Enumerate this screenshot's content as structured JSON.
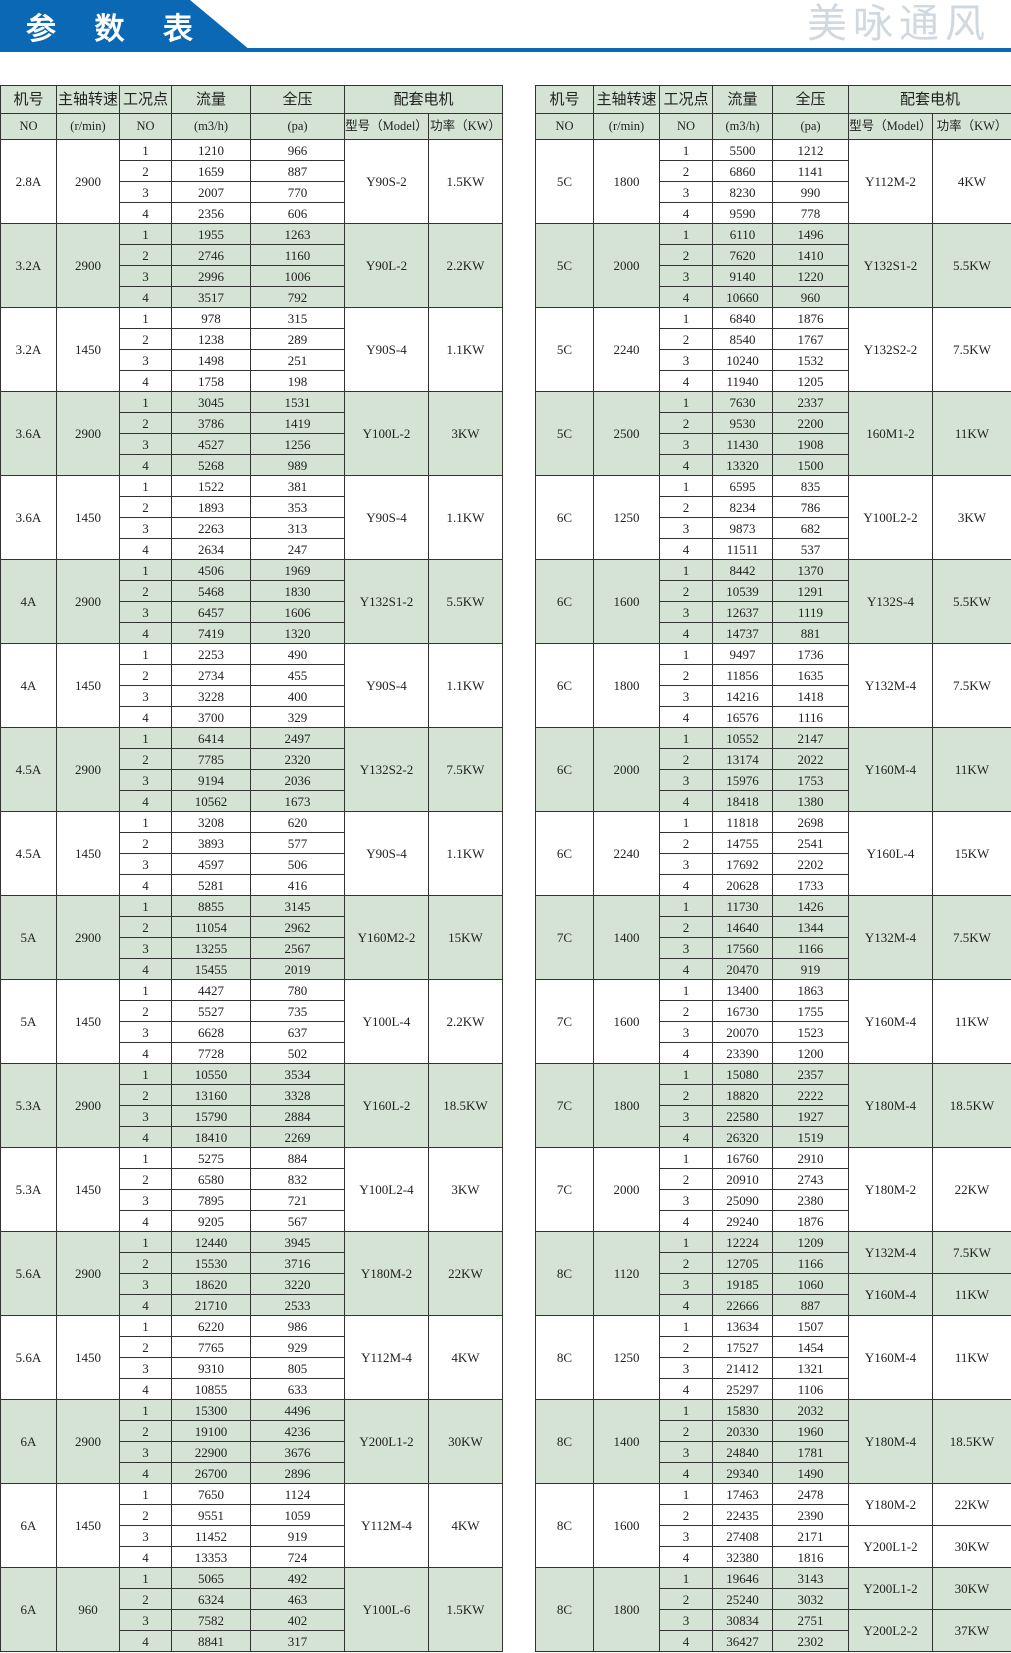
{
  "title": "参 数 表",
  "watermark": "美咏通风",
  "colors": {
    "brand_blue": "#0b68b4",
    "group_fill": "#d5e3d4"
  },
  "headers": {
    "row1": [
      "机号",
      "主轴转速",
      "工况点",
      "流量",
      "全压",
      "配套电机"
    ],
    "row2": [
      "NO",
      "(r/min)",
      "NO",
      "(m3/h)",
      "(pa)",
      "型号（Model）",
      "功率（KW）"
    ]
  },
  "left": [
    {
      "no": "2.8A",
      "rpm": "2900",
      "points": [
        [
          "1",
          "1210",
          "966"
        ],
        [
          "2",
          "1659",
          "887"
        ],
        [
          "3",
          "2007",
          "770"
        ],
        [
          "4",
          "2356",
          "606"
        ]
      ],
      "motors": [
        {
          "model": "Y90S-2",
          "power": "1.5KW"
        }
      ]
    },
    {
      "no": "3.2A",
      "rpm": "2900",
      "points": [
        [
          "1",
          "1955",
          "1263"
        ],
        [
          "2",
          "2746",
          "1160"
        ],
        [
          "3",
          "2996",
          "1006"
        ],
        [
          "4",
          "3517",
          "792"
        ]
      ],
      "motors": [
        {
          "model": "Y90L-2",
          "power": "2.2KW"
        }
      ]
    },
    {
      "no": "3.2A",
      "rpm": "1450",
      "points": [
        [
          "1",
          "978",
          "315"
        ],
        [
          "2",
          "1238",
          "289"
        ],
        [
          "3",
          "1498",
          "251"
        ],
        [
          "4",
          "1758",
          "198"
        ]
      ],
      "motors": [
        {
          "model": "Y90S-4",
          "power": "1.1KW"
        }
      ]
    },
    {
      "no": "3.6A",
      "rpm": "2900",
      "points": [
        [
          "1",
          "3045",
          "1531"
        ],
        [
          "2",
          "3786",
          "1419"
        ],
        [
          "3",
          "4527",
          "1256"
        ],
        [
          "4",
          "5268",
          "989"
        ]
      ],
      "motors": [
        {
          "model": "Y100L-2",
          "power": "3KW"
        }
      ]
    },
    {
      "no": "3.6A",
      "rpm": "1450",
      "points": [
        [
          "1",
          "1522",
          "381"
        ],
        [
          "2",
          "1893",
          "353"
        ],
        [
          "3",
          "2263",
          "313"
        ],
        [
          "4",
          "2634",
          "247"
        ]
      ],
      "motors": [
        {
          "model": "Y90S-4",
          "power": "1.1KW"
        }
      ]
    },
    {
      "no": "4A",
      "rpm": "2900",
      "points": [
        [
          "1",
          "4506",
          "1969"
        ],
        [
          "2",
          "5468",
          "1830"
        ],
        [
          "3",
          "6457",
          "1606"
        ],
        [
          "4",
          "7419",
          "1320"
        ]
      ],
      "motors": [
        {
          "model": "Y132S1-2",
          "power": "5.5KW"
        }
      ]
    },
    {
      "no": "4A",
      "rpm": "1450",
      "points": [
        [
          "1",
          "2253",
          "490"
        ],
        [
          "2",
          "2734",
          "455"
        ],
        [
          "3",
          "3228",
          "400"
        ],
        [
          "4",
          "3700",
          "329"
        ]
      ],
      "motors": [
        {
          "model": "Y90S-4",
          "power": "1.1KW"
        }
      ]
    },
    {
      "no": "4.5A",
      "rpm": "2900",
      "points": [
        [
          "1",
          "6414",
          "2497"
        ],
        [
          "2",
          "7785",
          "2320"
        ],
        [
          "3",
          "9194",
          "2036"
        ],
        [
          "4",
          "10562",
          "1673"
        ]
      ],
      "motors": [
        {
          "model": "Y132S2-2",
          "power": "7.5KW"
        }
      ]
    },
    {
      "no": "4.5A",
      "rpm": "1450",
      "points": [
        [
          "1",
          "3208",
          "620"
        ],
        [
          "2",
          "3893",
          "577"
        ],
        [
          "3",
          "4597",
          "506"
        ],
        [
          "4",
          "5281",
          "416"
        ]
      ],
      "motors": [
        {
          "model": "Y90S-4",
          "power": "1.1KW"
        }
      ]
    },
    {
      "no": "5A",
      "rpm": "2900",
      "points": [
        [
          "1",
          "8855",
          "3145"
        ],
        [
          "2",
          "11054",
          "2962"
        ],
        [
          "3",
          "13255",
          "2567"
        ],
        [
          "4",
          "15455",
          "2019"
        ]
      ],
      "motors": [
        {
          "model": "Y160M2-2",
          "power": "15KW"
        }
      ]
    },
    {
      "no": "5A",
      "rpm": "1450",
      "points": [
        [
          "1",
          "4427",
          "780"
        ],
        [
          "2",
          "5527",
          "735"
        ],
        [
          "3",
          "6628",
          "637"
        ],
        [
          "4",
          "7728",
          "502"
        ]
      ],
      "motors": [
        {
          "model": "Y100L-4",
          "power": "2.2KW"
        }
      ]
    },
    {
      "no": "5.3A",
      "rpm": "2900",
      "points": [
        [
          "1",
          "10550",
          "3534"
        ],
        [
          "2",
          "13160",
          "3328"
        ],
        [
          "3",
          "15790",
          "2884"
        ],
        [
          "4",
          "18410",
          "2269"
        ]
      ],
      "motors": [
        {
          "model": "Y160L-2",
          "power": "18.5KW"
        }
      ]
    },
    {
      "no": "5.3A",
      "rpm": "1450",
      "points": [
        [
          "1",
          "5275",
          "884"
        ],
        [
          "2",
          "6580",
          "832"
        ],
        [
          "3",
          "7895",
          "721"
        ],
        [
          "4",
          "9205",
          "567"
        ]
      ],
      "motors": [
        {
          "model": "Y100L2-4",
          "power": "3KW"
        }
      ]
    },
    {
      "no": "5.6A",
      "rpm": "2900",
      "points": [
        [
          "1",
          "12440",
          "3945"
        ],
        [
          "2",
          "15530",
          "3716"
        ],
        [
          "3",
          "18620",
          "3220"
        ],
        [
          "4",
          "21710",
          "2533"
        ]
      ],
      "motors": [
        {
          "model": "Y180M-2",
          "power": "22KW"
        }
      ]
    },
    {
      "no": "5.6A",
      "rpm": "1450",
      "points": [
        [
          "1",
          "6220",
          "986"
        ],
        [
          "2",
          "7765",
          "929"
        ],
        [
          "3",
          "9310",
          "805"
        ],
        [
          "4",
          "10855",
          "633"
        ]
      ],
      "motors": [
        {
          "model": "Y112M-4",
          "power": "4KW"
        }
      ]
    },
    {
      "no": "6A",
      "rpm": "2900",
      "points": [
        [
          "1",
          "15300",
          "4496"
        ],
        [
          "2",
          "19100",
          "4236"
        ],
        [
          "3",
          "22900",
          "3676"
        ],
        [
          "4",
          "26700",
          "2896"
        ]
      ],
      "motors": [
        {
          "model": "Y200L1-2",
          "power": "30KW"
        }
      ]
    },
    {
      "no": "6A",
      "rpm": "1450",
      "points": [
        [
          "1",
          "7650",
          "1124"
        ],
        [
          "2",
          "9551",
          "1059"
        ],
        [
          "3",
          "11452",
          "919"
        ],
        [
          "4",
          "13353",
          "724"
        ]
      ],
      "motors": [
        {
          "model": "Y112M-4",
          "power": "4KW"
        }
      ]
    },
    {
      "no": "6A",
      "rpm": "960",
      "points": [
        [
          "1",
          "5065",
          "492"
        ],
        [
          "2",
          "6324",
          "463"
        ],
        [
          "3",
          "7582",
          "402"
        ],
        [
          "4",
          "8841",
          "317"
        ]
      ],
      "motors": [
        {
          "model": "Y100L-6",
          "power": "1.5KW"
        }
      ]
    }
  ],
  "right": [
    {
      "no": "5C",
      "rpm": "1800",
      "points": [
        [
          "1",
          "5500",
          "1212"
        ],
        [
          "2",
          "6860",
          "1141"
        ],
        [
          "3",
          "8230",
          "990"
        ],
        [
          "4",
          "9590",
          "778"
        ]
      ],
      "motors": [
        {
          "model": "Y112M-2",
          "power": "4KW"
        }
      ]
    },
    {
      "no": "5C",
      "rpm": "2000",
      "points": [
        [
          "1",
          "6110",
          "1496"
        ],
        [
          "2",
          "7620",
          "1410"
        ],
        [
          "3",
          "9140",
          "1220"
        ],
        [
          "4",
          "10660",
          "960"
        ]
      ],
      "motors": [
        {
          "model": "Y132S1-2",
          "power": "5.5KW"
        }
      ]
    },
    {
      "no": "5C",
      "rpm": "2240",
      "points": [
        [
          "1",
          "6840",
          "1876"
        ],
        [
          "2",
          "8540",
          "1767"
        ],
        [
          "3",
          "10240",
          "1532"
        ],
        [
          "4",
          "11940",
          "1205"
        ]
      ],
      "motors": [
        {
          "model": "Y132S2-2",
          "power": "7.5KW"
        }
      ]
    },
    {
      "no": "5C",
      "rpm": "2500",
      "points": [
        [
          "1",
          "7630",
          "2337"
        ],
        [
          "2",
          "9530",
          "2200"
        ],
        [
          "3",
          "11430",
          "1908"
        ],
        [
          "4",
          "13320",
          "1500"
        ]
      ],
      "motors": [
        {
          "model": "160M1-2",
          "power": "11KW"
        }
      ]
    },
    {
      "no": "6C",
      "rpm": "1250",
      "points": [
        [
          "1",
          "6595",
          "835"
        ],
        [
          "2",
          "8234",
          "786"
        ],
        [
          "3",
          "9873",
          "682"
        ],
        [
          "4",
          "11511",
          "537"
        ]
      ],
      "motors": [
        {
          "model": "Y100L2-2",
          "power": "3KW"
        }
      ]
    },
    {
      "no": "6C",
      "rpm": "1600",
      "points": [
        [
          "1",
          "8442",
          "1370"
        ],
        [
          "2",
          "10539",
          "1291"
        ],
        [
          "3",
          "12637",
          "1119"
        ],
        [
          "4",
          "14737",
          "881"
        ]
      ],
      "motors": [
        {
          "model": "Y132S-4",
          "power": "5.5KW"
        }
      ]
    },
    {
      "no": "6C",
      "rpm": "1800",
      "points": [
        [
          "1",
          "9497",
          "1736"
        ],
        [
          "2",
          "11856",
          "1635"
        ],
        [
          "3",
          "14216",
          "1418"
        ],
        [
          "4",
          "16576",
          "1116"
        ]
      ],
      "motors": [
        {
          "model": "Y132M-4",
          "power": "7.5KW"
        }
      ]
    },
    {
      "no": "6C",
      "rpm": "2000",
      "points": [
        [
          "1",
          "10552",
          "2147"
        ],
        [
          "2",
          "13174",
          "2022"
        ],
        [
          "3",
          "15976",
          "1753"
        ],
        [
          "4",
          "18418",
          "1380"
        ]
      ],
      "motors": [
        {
          "model": "Y160M-4",
          "power": "11KW"
        }
      ]
    },
    {
      "no": "6C",
      "rpm": "2240",
      "points": [
        [
          "1",
          "11818",
          "2698"
        ],
        [
          "2",
          "14755",
          "2541"
        ],
        [
          "3",
          "17692",
          "2202"
        ],
        [
          "4",
          "20628",
          "1733"
        ]
      ],
      "motors": [
        {
          "model": "Y160L-4",
          "power": "15KW"
        }
      ]
    },
    {
      "no": "7C",
      "rpm": "1400",
      "points": [
        [
          "1",
          "11730",
          "1426"
        ],
        [
          "2",
          "14640",
          "1344"
        ],
        [
          "3",
          "17560",
          "1166"
        ],
        [
          "4",
          "20470",
          "919"
        ]
      ],
      "motors": [
        {
          "model": "Y132M-4",
          "power": "7.5KW"
        }
      ]
    },
    {
      "no": "7C",
      "rpm": "1600",
      "points": [
        [
          "1",
          "13400",
          "1863"
        ],
        [
          "2",
          "16730",
          "1755"
        ],
        [
          "3",
          "20070",
          "1523"
        ],
        [
          "4",
          "23390",
          "1200"
        ]
      ],
      "motors": [
        {
          "model": "Y160M-4",
          "power": "11KW"
        }
      ]
    },
    {
      "no": "7C",
      "rpm": "1800",
      "points": [
        [
          "1",
          "15080",
          "2357"
        ],
        [
          "2",
          "18820",
          "2222"
        ],
        [
          "3",
          "22580",
          "1927"
        ],
        [
          "4",
          "26320",
          "1519"
        ]
      ],
      "motors": [
        {
          "model": "Y180M-4",
          "power": "18.5KW"
        }
      ]
    },
    {
      "no": "7C",
      "rpm": "2000",
      "points": [
        [
          "1",
          "16760",
          "2910"
        ],
        [
          "2",
          "20910",
          "2743"
        ],
        [
          "3",
          "25090",
          "2380"
        ],
        [
          "4",
          "29240",
          "1876"
        ]
      ],
      "motors": [
        {
          "model": "Y180M-2",
          "power": "22KW"
        }
      ]
    },
    {
      "no": "8C",
      "rpm": "1120",
      "points": [
        [
          "1",
          "12224",
          "1209"
        ],
        [
          "2",
          "12705",
          "1166"
        ],
        [
          "3",
          "19185",
          "1060"
        ],
        [
          "4",
          "22666",
          "887"
        ]
      ],
      "motors": [
        {
          "model": "Y132M-4",
          "power": "7.5KW"
        },
        {
          "model": "Y160M-4",
          "power": "11KW"
        }
      ]
    },
    {
      "no": "8C",
      "rpm": "1250",
      "points": [
        [
          "1",
          "13634",
          "1507"
        ],
        [
          "2",
          "17527",
          "1454"
        ],
        [
          "3",
          "21412",
          "1321"
        ],
        [
          "4",
          "25297",
          "1106"
        ]
      ],
      "motors": [
        {
          "model": "Y160M-4",
          "power": "11KW"
        }
      ]
    },
    {
      "no": "8C",
      "rpm": "1400",
      "points": [
        [
          "1",
          "15830",
          "2032"
        ],
        [
          "2",
          "20330",
          "1960"
        ],
        [
          "3",
          "24840",
          "1781"
        ],
        [
          "4",
          "29340",
          "1490"
        ]
      ],
      "motors": [
        {
          "model": "Y180M-4",
          "power": "18.5KW"
        }
      ]
    },
    {
      "no": "8C",
      "rpm": "1600",
      "points": [
        [
          "1",
          "17463",
          "2478"
        ],
        [
          "2",
          "22435",
          "2390"
        ],
        [
          "3",
          "27408",
          "2171"
        ],
        [
          "4",
          "32380",
          "1816"
        ]
      ],
      "motors": [
        {
          "model": "Y180M-2",
          "power": "22KW"
        },
        {
          "model": "Y200L1-2",
          "power": "30KW"
        }
      ]
    },
    {
      "no": "8C",
      "rpm": "1800",
      "points": [
        [
          "1",
          "19646",
          "3143"
        ],
        [
          "2",
          "25240",
          "3032"
        ],
        [
          "3",
          "30834",
          "2751"
        ],
        [
          "4",
          "36427",
          "2302"
        ]
      ],
      "motors": [
        {
          "model": "Y200L1-2",
          "power": "30KW"
        },
        {
          "model": "Y200L2-2",
          "power": "37KW"
        }
      ]
    }
  ]
}
